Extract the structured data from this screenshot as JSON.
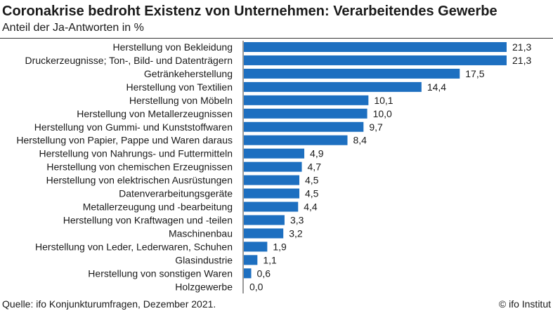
{
  "title": "Coronakrise bedroht Existenz von Unternehmen: Verarbeitendes Gewerbe",
  "subtitle": "Anteil der Ja-Antworten in %",
  "footer": {
    "source": "Quelle: ifo Konjunkturumfragen, Dezember 2021.",
    "credit": "© ifo Institut"
  },
  "chart_data": {
    "type": "bar",
    "orientation": "horizontal",
    "title": "Coronakrise bedroht Existenz von Unternehmen: Verarbeitendes Gewerbe",
    "subtitle": "Anteil der Ja-Antworten in %",
    "categories": [
      "Herstellung von Bekleidung",
      "Druckerzeugnisse; Ton-, Bild- und Datenträgern",
      "Getränkeherstellung",
      "Herstellung von Textilien",
      "Herstellung von Möbeln",
      "Herstellung von Metallerzeugnissen",
      "Herstellung von Gummi- und Kunststoffwaren",
      "Herstellung von Papier, Pappe und Waren daraus",
      "Herstellung von Nahrungs- und Futtermitteln",
      "Herstellung von chemischen Erzeugnissen",
      "Herstellung von elektrischen Ausrüstungen",
      "Datenverarbeitungsgeräte",
      "Metallerzeugung und -bearbeitung",
      "Herstellung von Kraftwagen und -teilen",
      "Maschinenbau",
      "Herstellung von Leder, Lederwaren, Schuhen",
      "Glasindustrie",
      "Herstellung von sonstigen Waren",
      "Holzgewerbe"
    ],
    "values": [
      21.3,
      21.3,
      17.5,
      14.4,
      10.1,
      10.0,
      9.7,
      8.4,
      4.9,
      4.7,
      4.5,
      4.5,
      4.4,
      3.3,
      3.2,
      1.9,
      1.1,
      0.6,
      0.0
    ],
    "value_labels": [
      "21,3",
      "21,3",
      "17,5",
      "14,4",
      "10,1",
      "10,0",
      "9,7",
      "8,4",
      "4,9",
      "4,7",
      "4,5",
      "4,5",
      "4,4",
      "3,3",
      "3,2",
      "1,9",
      "1,1",
      "0,6",
      "0,0"
    ],
    "xlim": [
      0,
      21.3
    ],
    "color": "#1d6fc0",
    "grid": false,
    "legend": "none"
  }
}
